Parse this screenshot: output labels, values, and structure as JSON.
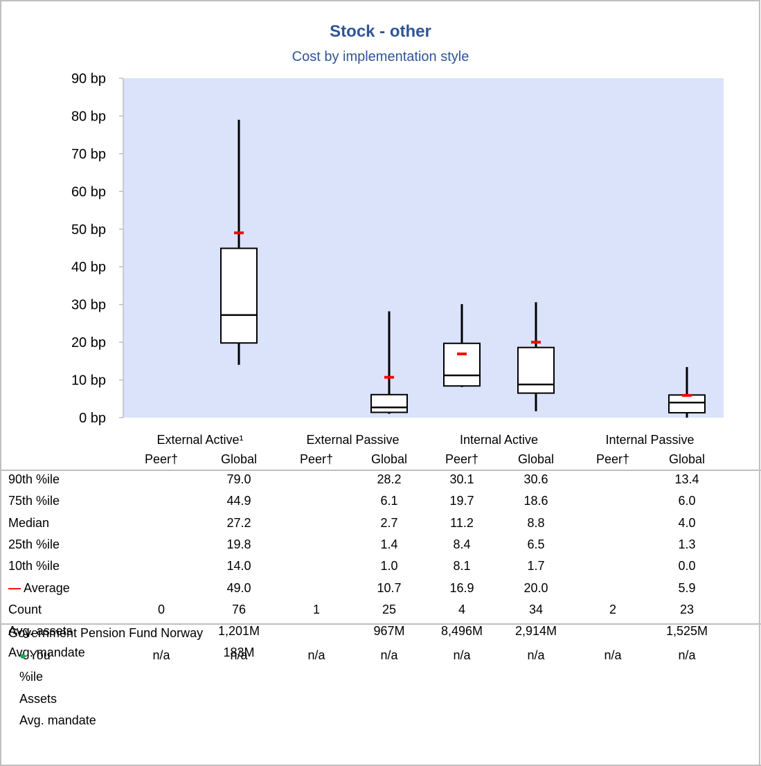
{
  "chart_data": {
    "type": "box",
    "title": "Stock - other",
    "subtitle": "Cost by implementation style",
    "unit": "bp",
    "ylim": [
      0,
      90
    ],
    "yticks": [
      0,
      10,
      20,
      30,
      40,
      50,
      60,
      70,
      80,
      90
    ],
    "ytick_labels": [
      "0 bp",
      "10 bp",
      "20 bp",
      "30 bp",
      "40 bp",
      "50 bp",
      "60 bp",
      "70 bp",
      "80 bp",
      "90 bp"
    ],
    "plot_background": "#dae3fa",
    "average_marker_color": "#ff0000",
    "groups": [
      "External Active¹",
      "External Passive",
      "Internal Active",
      "Internal Passive"
    ],
    "subgroups": [
      "Peer†",
      "Global"
    ],
    "series": [
      {
        "group": "External Active¹",
        "subgroup": "Peer†",
        "p90": null,
        "p75": null,
        "median": null,
        "p25": null,
        "p10": null,
        "average": null
      },
      {
        "group": "External Active¹",
        "subgroup": "Global",
        "p90": 79.0,
        "p75": 44.9,
        "median": 27.2,
        "p25": 19.8,
        "p10": 14.0,
        "average": 49.0
      },
      {
        "group": "External Passive",
        "subgroup": "Peer†",
        "p90": null,
        "p75": null,
        "median": null,
        "p25": null,
        "p10": null,
        "average": null
      },
      {
        "group": "External Passive",
        "subgroup": "Global",
        "p90": 28.2,
        "p75": 6.1,
        "median": 2.7,
        "p25": 1.4,
        "p10": 1.0,
        "average": 10.7
      },
      {
        "group": "Internal Active",
        "subgroup": "Peer†",
        "p90": 30.1,
        "p75": 19.7,
        "median": 11.2,
        "p25": 8.4,
        "p10": 8.1,
        "average": 16.9
      },
      {
        "group": "Internal Active",
        "subgroup": "Global",
        "p90": 30.6,
        "p75": 18.6,
        "median": 8.8,
        "p25": 6.5,
        "p10": 1.7,
        "average": 20.0
      },
      {
        "group": "Internal Passive",
        "subgroup": "Peer†",
        "p90": null,
        "p75": null,
        "median": null,
        "p25": null,
        "p10": null,
        "average": null
      },
      {
        "group": "Internal Passive",
        "subgroup": "Global",
        "p90": 13.4,
        "p75": 6.0,
        "median": 4.0,
        "p25": 1.3,
        "p10": 0.0,
        "average": 5.9
      }
    ]
  },
  "table": {
    "stats": [
      {
        "label": "90th %ile",
        "values": [
          "",
          "79.0",
          "",
          "28.2",
          "30.1",
          "30.6",
          "",
          "13.4"
        ]
      },
      {
        "label": "75th %ile",
        "values": [
          "",
          "44.9",
          "",
          "6.1",
          "19.7",
          "18.6",
          "",
          "6.0"
        ]
      },
      {
        "label": "Median",
        "values": [
          "",
          "27.2",
          "",
          "2.7",
          "11.2",
          "8.8",
          "",
          "4.0"
        ]
      },
      {
        "label": "25th %ile",
        "values": [
          "",
          "19.8",
          "",
          "1.4",
          "8.4",
          "6.5",
          "",
          "1.3"
        ]
      },
      {
        "label": "10th %ile",
        "values": [
          "",
          "14.0",
          "",
          "1.0",
          "8.1",
          "1.7",
          "",
          "0.0"
        ]
      },
      {
        "label": "Average",
        "marker": "—",
        "values": [
          "",
          "49.0",
          "",
          "10.7",
          "16.9",
          "20.0",
          "",
          "5.9"
        ]
      },
      {
        "label": "Count",
        "values": [
          "0",
          "76",
          "1",
          "25",
          "4",
          "34",
          "2",
          "23"
        ]
      },
      {
        "label": "Avg. assets",
        "values": [
          "",
          "1,201M",
          "",
          "967M",
          "8,496M",
          "2,914M",
          "",
          "1,525M"
        ]
      },
      {
        "label": "Avg. mandate",
        "values": [
          "",
          "183M",
          "",
          "",
          "",
          "",
          "",
          ""
        ]
      }
    ],
    "fund_name": "Government Pension Fund Norway",
    "you": {
      "marker": "●",
      "label": "You",
      "values": [
        "n/a",
        "n/a",
        "n/a",
        "n/a",
        "n/a",
        "n/a",
        "n/a",
        "n/a"
      ]
    },
    "extra_rows": [
      "%ile",
      "Assets",
      "Avg. mandate"
    ]
  }
}
